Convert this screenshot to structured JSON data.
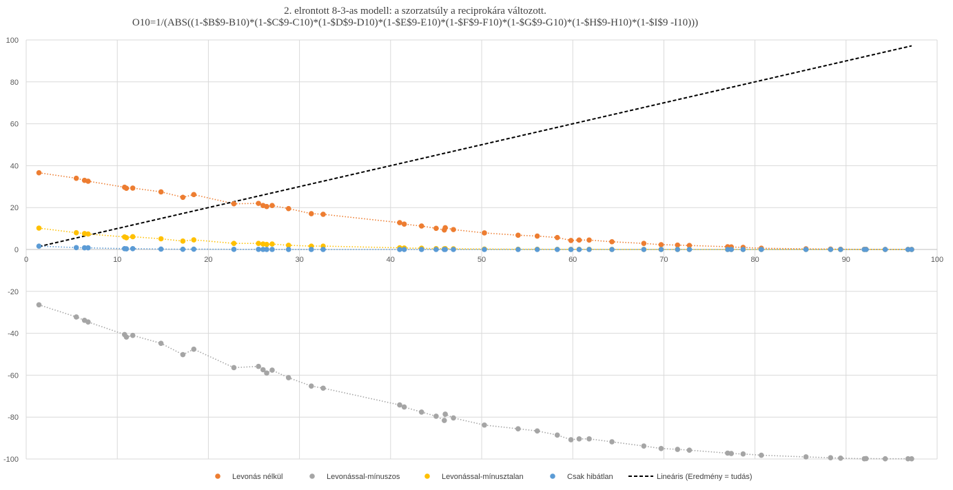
{
  "chart_data": {
    "type": "scatter",
    "title_lines": [
      "2. elrontott 8-3-as modell: a szorzatsúly a reciprokára változott.",
      "O10=1/(ABS((1-$B$9-B10)*(1-$C$9-C10)*(1-$D$9-D10)*(1-$E$9-E10)*(1-$F$9-F10)*(1-$G$9-G10)*(1-$H$9-H10)*(1-$I$9 -I10)))"
    ],
    "xlim": [
      0,
      100
    ],
    "ylim": [
      -100,
      100
    ],
    "x_ticks": [
      0,
      10,
      20,
      30,
      40,
      50,
      60,
      70,
      80,
      90,
      100
    ],
    "y_ticks": [
      -100,
      -80,
      -60,
      -40,
      -20,
      0,
      20,
      40,
      60,
      80,
      100
    ],
    "grid": true,
    "legend_position": "bottom",
    "x": [
      1.4,
      5.5,
      6.4,
      6.8,
      10.8,
      11.0,
      11.7,
      14.8,
      17.2,
      18.4,
      22.8,
      25.5,
      26.0,
      26.4,
      27.0,
      28.8,
      31.3,
      32.6,
      41.0,
      41.5,
      43.4,
      45.0,
      45.9,
      46.0,
      46.9,
      50.3,
      54.0,
      56.1,
      58.3,
      59.8,
      60.7,
      61.8,
      64.3,
      67.8,
      69.7,
      71.5,
      72.8,
      77.0,
      77.4,
      78.7,
      80.7,
      85.6,
      88.3,
      89.4,
      92.0,
      92.2,
      94.3,
      96.8,
      97.2
    ],
    "series": [
      {
        "name": "Levonás nélkül",
        "color": "#ED7D31",
        "trend": true,
        "values": [
          36.6,
          34.0,
          33.0,
          32.6,
          29.7,
          29.2,
          29.3,
          27.5,
          24.9,
          26.2,
          21.8,
          22.0,
          21.0,
          20.5,
          21.0,
          19.5,
          17.1,
          16.8,
          12.8,
          12.1,
          11.2,
          10.1,
          9.3,
          10.4,
          9.5,
          7.9,
          6.8,
          6.4,
          5.7,
          4.3,
          4.5,
          4.5,
          3.7,
          2.9,
          2.3,
          2.1,
          1.9,
          1.3,
          1.2,
          1.0,
          0.6,
          0.3,
          0.2,
          0.1,
          0.05,
          0.05,
          0.02,
          0.01,
          0.01
        ]
      },
      {
        "name": "Levonással-mínuszos",
        "color": "#A5A5A5",
        "trend": true,
        "values": [
          -26.4,
          -32.2,
          -33.8,
          -34.6,
          -40.6,
          -41.8,
          -41.0,
          -44.8,
          -50.2,
          -47.6,
          -56.4,
          -55.8,
          -57.4,
          -59.0,
          -57.6,
          -61.2,
          -65.2,
          -66.2,
          -74.2,
          -75.2,
          -77.6,
          -79.6,
          -81.6,
          -78.6,
          -80.4,
          -83.8,
          -85.6,
          -86.6,
          -88.6,
          -90.8,
          -90.4,
          -90.4,
          -91.8,
          -93.8,
          -95.0,
          -95.4,
          -95.8,
          -97.2,
          -97.4,
          -97.6,
          -98.2,
          -99.0,
          -99.4,
          -99.6,
          -99.9,
          -99.8,
          -99.9,
          -99.9,
          -99.9
        ]
      },
      {
        "name": "Levonással-mínusztalan",
        "color": "#FFC000",
        "trend": true,
        "values": [
          10.2,
          8.0,
          7.6,
          7.4,
          6.0,
          5.6,
          6.1,
          5.1,
          4.0,
          4.6,
          2.9,
          2.9,
          2.6,
          2.4,
          2.6,
          2.0,
          1.6,
          1.6,
          0.8,
          0.7,
          0.6,
          0.4,
          0.3,
          0.4,
          0.3,
          0.2,
          0.1,
          0.1,
          0.08,
          0.05,
          0.05,
          0.05,
          0.03,
          0.02,
          0.01,
          0.01,
          0.01,
          0.0,
          0.0,
          0.0,
          0.0,
          0.0,
          0.0,
          0.0,
          0.0,
          0.0,
          0.0,
          0.0,
          0.0
        ]
      },
      {
        "name": "Csak hibátlan",
        "color": "#5B9BD5",
        "trend": true,
        "values": [
          1.6,
          0.9,
          0.8,
          0.8,
          0.4,
          0.3,
          0.4,
          0.2,
          0.1,
          0.15,
          0.05,
          0.05,
          0.04,
          0.03,
          0.04,
          0.02,
          0.01,
          0.01,
          0.0,
          0.0,
          0.0,
          0.0,
          0.0,
          0.0,
          0.0,
          0.0,
          0.0,
          0.0,
          0.0,
          0.0,
          0.0,
          0.0,
          0.0,
          0.0,
          0.0,
          0.0,
          0.0,
          0.0,
          0.0,
          0.0,
          0.0,
          0.0,
          0.0,
          0.0,
          0.0,
          0.0,
          0.0,
          0.0,
          0.0
        ]
      }
    ],
    "reference_line": {
      "name": "Lineáris (Eredmény = tudás)",
      "color": "#000000",
      "dash": true,
      "x": [
        1.4,
        97.2
      ],
      "y": [
        1.4,
        97.2
      ]
    }
  }
}
